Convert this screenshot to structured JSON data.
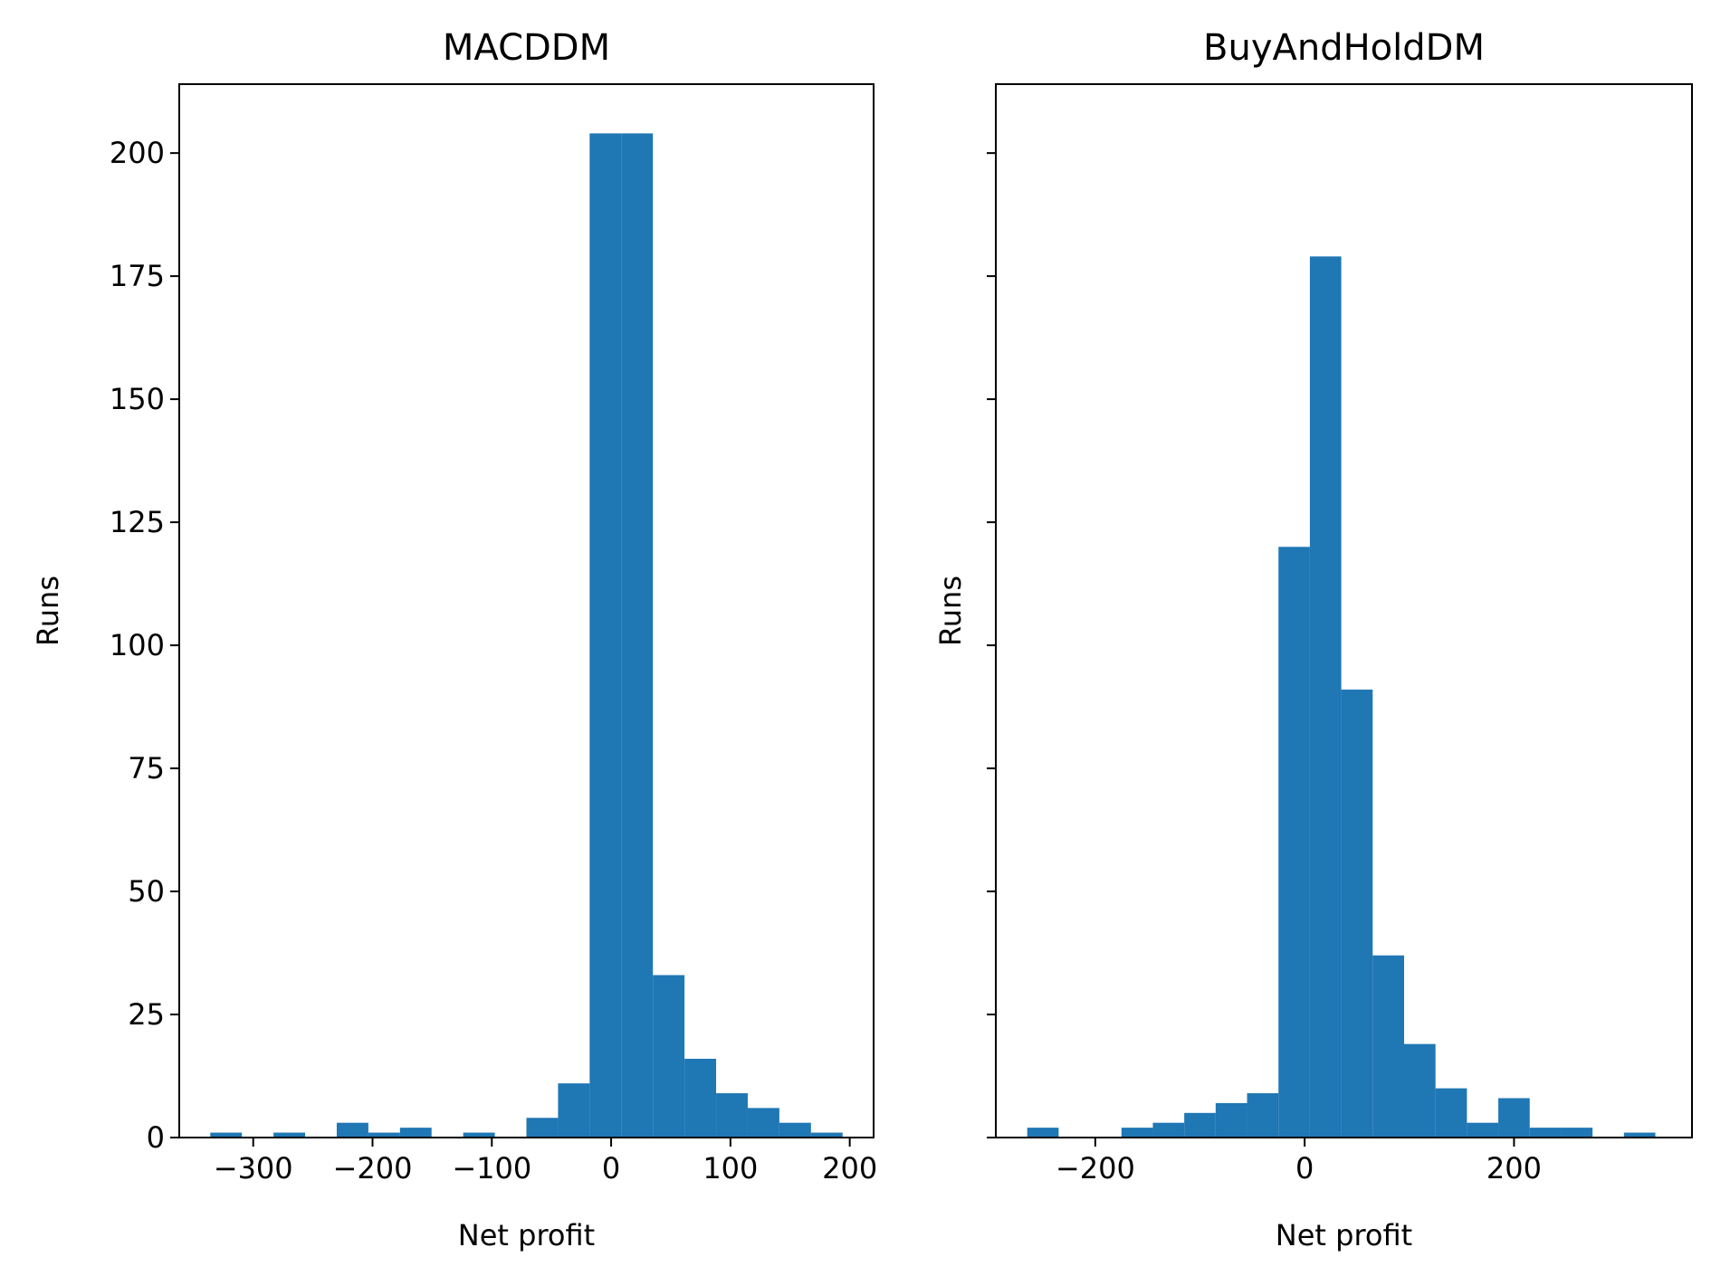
{
  "chart_data": [
    {
      "type": "bar",
      "title": "MACDDM",
      "xlabel": "Net profit",
      "ylabel": "Runs",
      "xlim": [
        -362,
        220
      ],
      "ylim": [
        0,
        214
      ],
      "xticks": [
        -300,
        -200,
        -100,
        0,
        100,
        200
      ],
      "xtick_labels": [
        "−300",
        "−200",
        "−100",
        "0",
        "100",
        "200"
      ],
      "yticks": [
        0,
        25,
        50,
        75,
        100,
        125,
        150,
        175,
        200
      ],
      "ytick_labels": [
        "0",
        "25",
        "50",
        "75",
        "100",
        "125",
        "150",
        "175",
        "200"
      ],
      "bar_color": "#1f77b4",
      "bin_edges": [
        -336,
        -309.5,
        -283,
        -256.5,
        -230,
        -203.5,
        -177,
        -150.5,
        -124,
        -97.5,
        -71,
        -44.5,
        -18,
        8.5,
        35,
        61.5,
        88,
        114.5,
        141,
        167.5,
        194
      ],
      "values": [
        1,
        0,
        1,
        0,
        3,
        1,
        2,
        0,
        1,
        0,
        4,
        11,
        204,
        204,
        33,
        16,
        9,
        6,
        3,
        1
      ]
    },
    {
      "type": "bar",
      "title": "BuyAndHoldDM",
      "xlabel": "Net profit",
      "ylabel": "Runs",
      "xlim": [
        -295,
        370
      ],
      "ylim": [
        0,
        214
      ],
      "xticks": [
        -200,
        0,
        200
      ],
      "xtick_labels": [
        "−200",
        "0",
        "200"
      ],
      "yticks": [
        0,
        25,
        50,
        75,
        100,
        125,
        150,
        175,
        200
      ],
      "ytick_labels": [
        "",
        "",
        "",
        "",
        "",
        "",
        "",
        "",
        ""
      ],
      "bar_color": "#1f77b4",
      "bin_edges": [
        -265,
        -235,
        -205,
        -175,
        -145,
        -115,
        -85,
        -55,
        -25,
        5,
        35,
        65,
        95,
        125,
        155,
        185,
        215,
        245,
        275,
        305,
        335
      ],
      "values": [
        2,
        0,
        0,
        2,
        3,
        5,
        7,
        9,
        120,
        179,
        91,
        37,
        19,
        10,
        3,
        8,
        2,
        2,
        0,
        1
      ]
    }
  ]
}
